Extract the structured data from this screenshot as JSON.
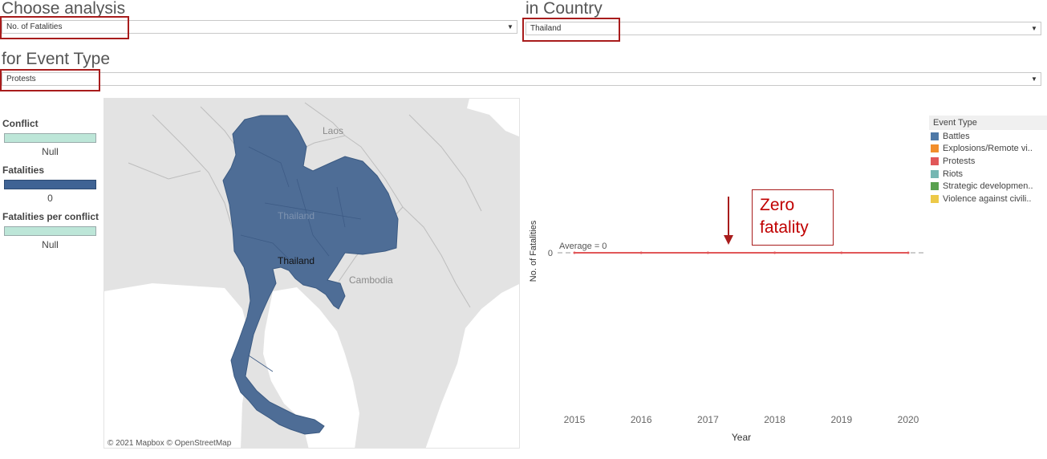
{
  "header": {
    "analysis": {
      "title": "Choose analysis",
      "selected": "No. of Fatalities"
    },
    "country": {
      "title": "in Country",
      "selected": "Thailand"
    },
    "event_type": {
      "title": "for Event Type",
      "selected": "Protests"
    }
  },
  "legends": {
    "conflict": {
      "title": "Conflict",
      "value": "Null",
      "color": "#bde6d8"
    },
    "fatalities": {
      "title": "Fatalities",
      "value": "0",
      "color": "#3f6394"
    },
    "fatalities_per_conflict": {
      "title": "Fatalities per conflict",
      "value": "Null",
      "color": "#bde6d8"
    }
  },
  "map": {
    "labels": {
      "laos": "Laos",
      "thailand_faint": "Thailand",
      "thailand": "Thailand",
      "cambodia": "Cambodia"
    },
    "attribution": "© 2021 Mapbox © OpenStreetMap",
    "highlight_color": "#4e6d96",
    "land_color": "#e3e3e3",
    "sea_color": "#ffffff"
  },
  "event_legend": {
    "title": "Event Type",
    "items": [
      {
        "label": "Battles",
        "color": "#4e79a7"
      },
      {
        "label": "Explosions/Remote vi..",
        "color": "#f28e2b"
      },
      {
        "label": "Protests",
        "color": "#e15759"
      },
      {
        "label": "Riots",
        "color": "#76b7b2"
      },
      {
        "label": "Strategic developmen..",
        "color": "#59a14f"
      },
      {
        "label": "Violence against civili..",
        "color": "#edc948"
      }
    ]
  },
  "annotation": {
    "text_line1": "Zero",
    "text_line2": "fatality"
  },
  "chart_data": {
    "type": "line",
    "x": [
      2015,
      2016,
      2017,
      2018,
      2019,
      2020
    ],
    "series": [
      {
        "name": "Protests",
        "values": [
          0,
          0,
          0,
          0,
          0,
          0
        ],
        "color": "#e15759"
      }
    ],
    "xlabel": "Year",
    "ylabel": "No. of Fatalities",
    "y_ticks": [
      0
    ],
    "reference_line": {
      "label": "Average = 0",
      "value": 0
    },
    "xlim": [
      2015,
      2020
    ]
  }
}
